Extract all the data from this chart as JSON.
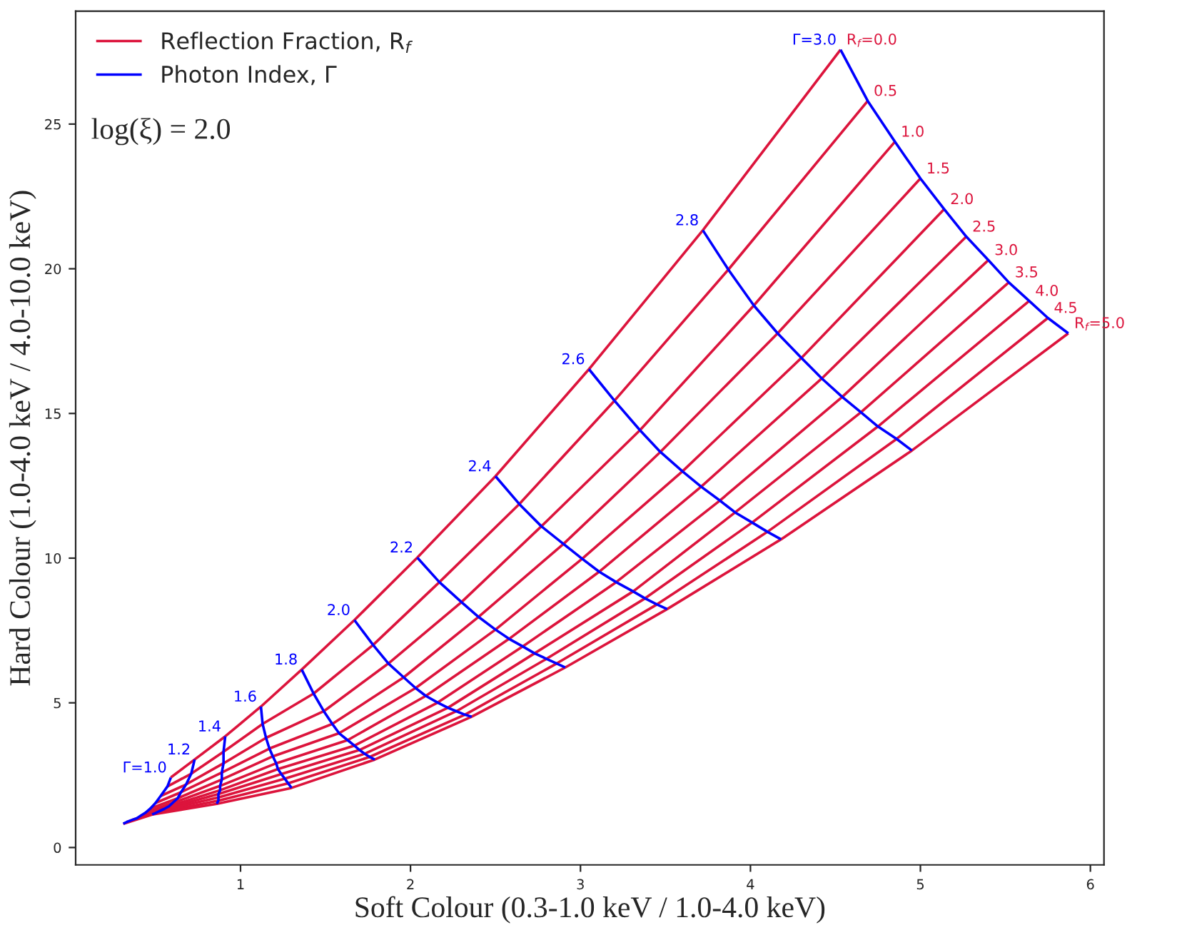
{
  "chart_data": {
    "type": "line",
    "xlabel": "Soft Colour (0.3-1.0 keV / 1.0-4.0 keV)",
    "ylabel": "Hard Colour (1.0-4.0 keV / 4.0-10.0 keV)",
    "xlim": [
      0.03,
      6.08
    ],
    "ylim": [
      -0.6,
      28.9
    ],
    "xticks": [
      1,
      2,
      3,
      4,
      5,
      6
    ],
    "yticks": [
      0,
      5,
      10,
      15,
      20,
      25
    ],
    "legend": "top left",
    "annotations": [
      "log(ξ) = 2.0",
      {
        "text": "Γ=1.0",
        "x": 0.59,
        "y": 2.42
      },
      {
        "text": "1.2",
        "x": 0.73,
        "y": 3.04
      },
      {
        "text": "1.4",
        "x": 0.91,
        "y": 3.84
      },
      {
        "text": "1.6",
        "x": 1.12,
        "y": 4.87
      },
      {
        "text": "1.8",
        "x": 1.36,
        "y": 6.15
      },
      {
        "text": "2.0",
        "x": 1.67,
        "y": 7.86
      },
      {
        "text": "2.2",
        "x": 2.04,
        "y": 10.02
      },
      {
        "text": "2.4",
        "x": 2.5,
        "y": 12.83
      },
      {
        "text": "2.6",
        "x": 3.05,
        "y": 16.53
      },
      {
        "text": "2.8",
        "x": 3.72,
        "y": 21.33
      },
      {
        "text": "Γ=3.0",
        "x": 4.53,
        "y": 27.57
      },
      {
        "text": "R$_{f}$=0.0",
        "x": 4.53,
        "y": 27.57
      },
      {
        "text": "0.5",
        "x": 4.69,
        "y": 25.8
      },
      {
        "text": "1.0",
        "x": 4.85,
        "y": 24.39
      },
      {
        "text": "1.5",
        "x": 5.0,
        "y": 23.12
      },
      {
        "text": "2.0",
        "x": 5.14,
        "y": 22.06
      },
      {
        "text": "2.5",
        "x": 5.27,
        "y": 21.11
      },
      {
        "text": "3.0",
        "x": 5.4,
        "y": 20.3
      },
      {
        "text": "3.5",
        "x": 5.52,
        "y": 19.53
      },
      {
        "text": "4.0",
        "x": 5.64,
        "y": 18.89
      },
      {
        "text": "4.5",
        "x": 5.75,
        "y": 18.3
      },
      {
        "text": "R$_{f}$=5.0",
        "x": 5.87,
        "y": 17.77
      }
    ],
    "series": [
      {
        "name": "Reflection Fraction, R$_{f}$",
        "color": "#dc143c",
        "x": [
          0.59,
          0.73,
          0.91,
          1.12,
          1.36,
          1.67,
          2.04,
          2.5,
          3.05,
          3.72,
          4.53,
          null,
          0.57,
          0.71,
          0.9,
          1.13,
          1.43,
          1.78,
          2.17,
          2.64,
          3.2,
          3.87,
          4.69,
          null,
          0.53,
          0.68,
          0.9,
          1.15,
          1.49,
          1.87,
          2.3,
          2.77,
          3.35,
          4.02,
          4.85,
          null,
          0.5,
          0.65,
          0.89,
          1.17,
          1.54,
          1.96,
          2.4,
          2.9,
          3.47,
          4.16,
          5.0,
          null,
          0.47,
          0.63,
          0.89,
          1.19,
          1.58,
          2.03,
          2.5,
          3.01,
          3.6,
          4.3,
          5.14,
          null,
          0.44,
          0.6,
          0.88,
          1.21,
          1.63,
          2.09,
          2.58,
          3.11,
          3.71,
          4.42,
          5.27,
          null,
          0.41,
          0.58,
          0.88,
          1.22,
          1.67,
          2.16,
          2.66,
          3.21,
          3.82,
          4.54,
          5.4,
          null,
          0.39,
          0.55,
          0.87,
          1.24,
          1.7,
          2.22,
          2.73,
          3.31,
          3.91,
          4.65,
          5.52,
          null,
          0.36,
          0.52,
          0.87,
          1.26,
          1.73,
          2.27,
          2.8,
          3.38,
          4.01,
          4.75,
          5.64,
          null,
          0.33,
          0.5,
          0.87,
          1.28,
          1.76,
          2.32,
          2.86,
          3.45,
          4.1,
          4.86,
          5.75,
          null,
          0.31,
          0.48,
          0.86,
          1.3,
          1.79,
          2.36,
          2.91,
          3.51,
          4.18,
          4.95,
          5.87
        ],
        "values": [
          2.42,
          3.04,
          3.84,
          4.87,
          6.15,
          7.86,
          10.02,
          12.83,
          16.53,
          21.33,
          27.57,
          null,
          2.11,
          2.55,
          3.31,
          4.27,
          5.32,
          7.0,
          9.17,
          11.87,
          15.44,
          19.97,
          25.8,
          null,
          1.78,
          2.18,
          2.91,
          3.79,
          4.71,
          6.36,
          8.48,
          11.1,
          14.42,
          18.73,
          24.39,
          null,
          1.54,
          1.91,
          2.59,
          3.42,
          4.27,
          5.88,
          7.97,
          10.49,
          13.67,
          17.77,
          23.12,
          null,
          1.35,
          1.7,
          2.35,
          3.15,
          3.95,
          5.51,
          7.53,
          9.98,
          13.0,
          16.92,
          22.06,
          null,
          1.2,
          1.54,
          2.13,
          2.91,
          3.71,
          5.24,
          7.21,
          9.53,
          12.47,
          16.21,
          21.11,
          null,
          1.09,
          1.43,
          1.98,
          2.71,
          3.52,
          5.01,
          6.95,
          9.17,
          11.99,
          15.57,
          20.3,
          null,
          1.01,
          1.33,
          1.85,
          2.54,
          3.37,
          4.83,
          6.71,
          8.85,
          11.58,
          15.04,
          19.53,
          null,
          0.95,
          1.25,
          1.73,
          2.38,
          3.24,
          4.71,
          6.52,
          8.61,
          11.23,
          14.55,
          18.89,
          null,
          0.88,
          1.19,
          1.62,
          2.22,
          3.13,
          4.59,
          6.36,
          8.4,
          10.91,
          14.12,
          18.3,
          null,
          0.82,
          1.14,
          1.51,
          2.06,
          3.04,
          4.52,
          6.22,
          8.24,
          10.65,
          13.72,
          17.77
        ],
        "line_style": "solid"
      },
      {
        "name": "Photon Index, Γ",
        "color": "#0000ff",
        "x": [
          0.59,
          0.57,
          0.53,
          0.5,
          0.47,
          0.44,
          0.41,
          0.39,
          0.36,
          0.33,
          0.31,
          null,
          0.73,
          0.71,
          0.68,
          0.65,
          0.63,
          0.6,
          0.58,
          0.55,
          0.52,
          0.5,
          0.48,
          null,
          0.91,
          0.9,
          0.9,
          0.89,
          0.89,
          0.88,
          0.88,
          0.87,
          0.87,
          0.87,
          0.86,
          null,
          1.12,
          1.13,
          1.15,
          1.17,
          1.19,
          1.21,
          1.22,
          1.24,
          1.26,
          1.28,
          1.3,
          null,
          1.36,
          1.43,
          1.49,
          1.54,
          1.58,
          1.63,
          1.67,
          1.7,
          1.73,
          1.76,
          1.79,
          null,
          1.67,
          1.78,
          1.87,
          1.96,
          2.03,
          2.09,
          2.16,
          2.22,
          2.27,
          2.32,
          2.36,
          null,
          2.04,
          2.17,
          2.3,
          2.4,
          2.5,
          2.58,
          2.66,
          2.73,
          2.8,
          2.86,
          2.91,
          null,
          2.5,
          2.64,
          2.77,
          2.9,
          3.01,
          3.11,
          3.21,
          3.31,
          3.38,
          3.45,
          3.51,
          null,
          3.05,
          3.2,
          3.35,
          3.47,
          3.6,
          3.71,
          3.82,
          3.91,
          4.01,
          4.1,
          4.18,
          null,
          3.72,
          3.87,
          4.02,
          4.16,
          4.3,
          4.42,
          4.54,
          4.65,
          4.75,
          4.86,
          4.95,
          null,
          4.53,
          4.69,
          4.85,
          5.0,
          5.14,
          5.27,
          5.4,
          5.52,
          5.64,
          5.75,
          5.87
        ],
        "values": [
          2.42,
          2.11,
          1.78,
          1.54,
          1.35,
          1.2,
          1.09,
          1.01,
          0.95,
          0.88,
          0.82,
          null,
          3.04,
          2.55,
          2.18,
          1.91,
          1.7,
          1.54,
          1.43,
          1.33,
          1.25,
          1.19,
          1.14,
          null,
          3.84,
          3.31,
          2.91,
          2.59,
          2.35,
          2.13,
          1.98,
          1.85,
          1.73,
          1.62,
          1.51,
          null,
          4.87,
          4.27,
          3.79,
          3.42,
          3.15,
          2.91,
          2.71,
          2.54,
          2.38,
          2.22,
          2.06,
          null,
          6.15,
          5.32,
          4.71,
          4.27,
          3.95,
          3.71,
          3.52,
          3.37,
          3.24,
          3.13,
          3.04,
          null,
          7.86,
          7.0,
          6.36,
          5.88,
          5.51,
          5.24,
          5.01,
          4.83,
          4.71,
          4.59,
          4.52,
          null,
          10.02,
          9.17,
          8.48,
          7.97,
          7.53,
          7.21,
          6.95,
          6.71,
          6.52,
          6.36,
          6.22,
          null,
          12.83,
          11.87,
          11.1,
          10.49,
          9.98,
          9.53,
          9.17,
          8.85,
          8.61,
          8.4,
          8.24,
          null,
          16.53,
          15.44,
          14.42,
          13.67,
          13.0,
          12.47,
          11.99,
          11.58,
          11.23,
          10.91,
          10.65,
          null,
          21.33,
          19.97,
          18.73,
          17.77,
          16.92,
          16.21,
          15.57,
          15.04,
          14.55,
          14.12,
          13.72,
          null,
          27.57,
          25.8,
          24.39,
          23.12,
          22.06,
          21.11,
          20.3,
          19.53,
          18.89,
          18.3,
          17.77
        ],
        "line_style": "solid"
      }
    ]
  }
}
